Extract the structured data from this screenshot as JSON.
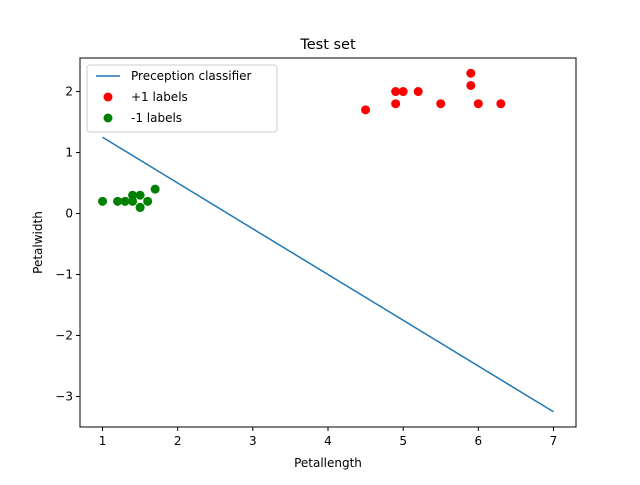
{
  "chart_data": {
    "type": "scatter",
    "title": "Test set",
    "xlabel": "Petallength",
    "ylabel": "Petalwidth",
    "xlim": [
      0.7,
      7.3
    ],
    "ylim": [
      -3.5,
      2.55
    ],
    "xticks": [
      1,
      2,
      3,
      4,
      5,
      6,
      7
    ],
    "yticks": [
      -3,
      -2,
      -1,
      0,
      1,
      2
    ],
    "xtick_labels": [
      "1",
      "2",
      "3",
      "4",
      "5",
      "6",
      "7"
    ],
    "ytick_labels": [
      "−3",
      "−2",
      "−1",
      "0",
      "1",
      "2"
    ],
    "grid": false,
    "legend_position": "top-left",
    "series": [
      {
        "name": "Preception classifier",
        "kind": "line",
        "color": "#1f77b4",
        "points": [
          [
            1,
            1.25
          ],
          [
            7,
            -3.25
          ]
        ]
      },
      {
        "name": "+1 labels",
        "kind": "scatter",
        "color": "#ff0000",
        "points": [
          [
            4.5,
            1.7
          ],
          [
            4.9,
            1.8
          ],
          [
            4.9,
            2.0
          ],
          [
            5.0,
            2.0
          ],
          [
            5.2,
            2.0
          ],
          [
            5.5,
            1.8
          ],
          [
            5.9,
            2.3
          ],
          [
            5.9,
            2.1
          ],
          [
            6.0,
            1.8
          ],
          [
            6.3,
            1.8
          ]
        ]
      },
      {
        "name": "-1 labels",
        "kind": "scatter",
        "color": "#008000",
        "points": [
          [
            1.0,
            0.2
          ],
          [
            1.2,
            0.2
          ],
          [
            1.3,
            0.2
          ],
          [
            1.4,
            0.3
          ],
          [
            1.4,
            0.2
          ],
          [
            1.5,
            0.3
          ],
          [
            1.5,
            0.1
          ],
          [
            1.5,
            0.1
          ],
          [
            1.6,
            0.2
          ],
          [
            1.7,
            0.4
          ]
        ]
      }
    ]
  }
}
